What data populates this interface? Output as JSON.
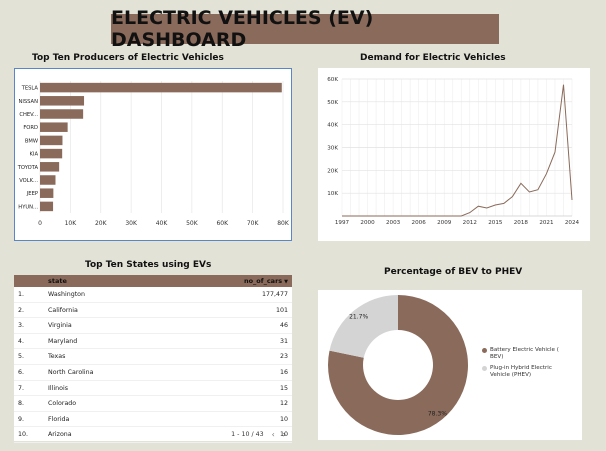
{
  "header": {
    "title": "ELECTRIC VEHICLES (EV) DASHBOARD"
  },
  "producers": {
    "title": "Top Ten Producers of Electric Vehicles",
    "chart_data": {
      "type": "bar",
      "orientation": "horizontal",
      "categories": [
        "TESLA",
        "NISSAN",
        "CHEV...",
        "FORD",
        "BMW",
        "KIA",
        "TOYOTA",
        "VOLK...",
        "JEEP",
        "HYUN..."
      ],
      "values": [
        79600,
        14500,
        14200,
        9100,
        7400,
        7300,
        6300,
        5100,
        4400,
        4300
      ],
      "xlim": [
        0,
        80000
      ],
      "xticks": [
        "0",
        "10K",
        "20K",
        "30K",
        "40K",
        "50K",
        "60K",
        "70K",
        "80K"
      ],
      "grid": true
    },
    "color": "#8a6a5a"
  },
  "demand": {
    "title": "Demand for Electric Vehicles",
    "chart_data": {
      "type": "line",
      "x": [
        1997,
        2000,
        2003,
        2006,
        2008,
        2010,
        2011,
        2012,
        2013,
        2014,
        2015,
        2016,
        2017,
        2018,
        2019,
        2020,
        2021,
        2022,
        2023,
        2024
      ],
      "values": [
        0,
        0,
        0,
        0,
        0,
        0,
        0,
        1500,
        4300,
        3500,
        4800,
        5500,
        8500,
        14300,
        10500,
        11500,
        18500,
        28000,
        57500,
        7000
      ],
      "ylim": [
        0,
        60000
      ],
      "yticks": [
        "10K",
        "20K",
        "30K",
        "40K",
        "50K",
        "60K"
      ],
      "xticks": [
        "1997",
        "2000",
        "2003",
        "2006",
        "2009",
        "2012",
        "2015",
        "2018",
        "2021",
        "2024"
      ],
      "grid": true
    },
    "color": "#8a6a5a"
  },
  "states": {
    "title": "Top Ten States using EVs",
    "columns": {
      "state": "state",
      "count": "no_of_cars"
    },
    "rows": [
      {
        "rank": "1.",
        "state": "Washington",
        "count": "177,477"
      },
      {
        "rank": "2.",
        "state": "California",
        "count": "101"
      },
      {
        "rank": "3.",
        "state": "Virginia",
        "count": "46"
      },
      {
        "rank": "4.",
        "state": "Maryland",
        "count": "31"
      },
      {
        "rank": "5.",
        "state": "Texas",
        "count": "23"
      },
      {
        "rank": "6.",
        "state": "North Carolina",
        "count": "16"
      },
      {
        "rank": "7.",
        "state": "Illinois",
        "count": "15"
      },
      {
        "rank": "8.",
        "state": "Colorado",
        "count": "12"
      },
      {
        "rank": "9.",
        "state": "Florida",
        "count": "10"
      },
      {
        "rank": "10.",
        "state": "Arizona",
        "count": "10"
      }
    ],
    "pagination": "1 - 10 / 43",
    "prev_icon": "‹",
    "next_icon": "›",
    "sort_icon": "▼"
  },
  "bev_phev": {
    "title": "Percentage of BEV to PHEV",
    "chart_data": {
      "type": "pie",
      "donut": true,
      "slices": [
        {
          "label": "Battery Electric Vehicle (BEV)",
          "value": 78.3,
          "display": "78.3%",
          "color": "#8a6a5a"
        },
        {
          "label": "Plug-in Hybrid Electric Vehicle (PHEV)",
          "value": 21.7,
          "display": "21.7%",
          "color": "#d4d4d4"
        }
      ],
      "legend": "right"
    },
    "legend": {
      "bev_line1": "Battery Electric Vehicle (",
      "bev_line2": "BEV)",
      "phev_line1": "Plug-in Hybrid Electric",
      "phev_line2": "Vehicle (PHEV)"
    }
  }
}
